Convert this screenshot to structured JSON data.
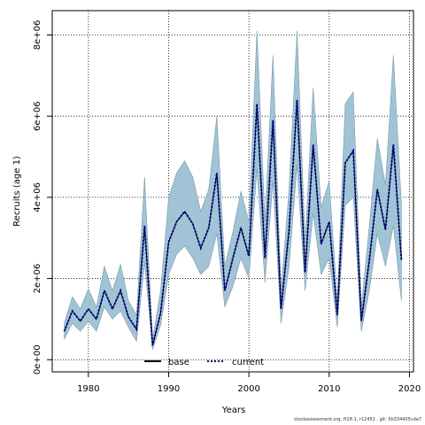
{
  "chart_data": {
    "type": "area",
    "xlabel": "Years",
    "ylabel": "Recruits (age 1)",
    "xlim": [
      1975.5,
      2020.5
    ],
    "ylim": [
      -300000,
      8600000
    ],
    "x_ticks": [
      1980,
      1990,
      2000,
      2010,
      2020
    ],
    "x_tick_labels": [
      "1980",
      "1990",
      "2000",
      "2010",
      "2020"
    ],
    "y_ticks": [
      0,
      2000000,
      4000000,
      6000000,
      8000000
    ],
    "y_tick_labels": [
      "0e+00",
      "2e+06",
      "4e+06",
      "6e+06",
      "8e+06"
    ],
    "grid": true,
    "legend_position": "bottom-center",
    "legend": [
      {
        "label": "base",
        "style": "solid",
        "color": "#000000"
      },
      {
        "label": "current",
        "style": "dotted",
        "color": "#00008b"
      }
    ],
    "band_color": "#a0c4d6",
    "x": [
      1977,
      1978,
      1979,
      1980,
      1981,
      1982,
      1983,
      1984,
      1985,
      1986,
      1987,
      1988,
      1989,
      1990,
      1991,
      1992,
      1993,
      1994,
      1995,
      1996,
      1997,
      1998,
      1999,
      2000,
      2001,
      2002,
      2003,
      2004,
      2005,
      2006,
      2007,
      2008,
      2009,
      2010,
      2011,
      2012,
      2013,
      2014,
      2015,
      2016,
      2017,
      2018,
      2019
    ],
    "series": [
      {
        "name": "base",
        "values": [
          700000,
          1200000,
          950000,
          1250000,
          1000000,
          1700000,
          1250000,
          1700000,
          1050000,
          750000,
          3300000,
          350000,
          1150000,
          2900000,
          3400000,
          3650000,
          3350000,
          2750000,
          3250000,
          4600000,
          1700000,
          2500000,
          3250000,
          2550000,
          6300000,
          2500000,
          5900000,
          1250000,
          3200000,
          6400000,
          2150000,
          5300000,
          2850000,
          3400000,
          1100000,
          4850000,
          5150000,
          950000,
          2450000,
          4200000,
          3200000,
          5300000,
          2450000
        ]
      },
      {
        "name": "current",
        "values": [
          700000,
          1200000,
          950000,
          1250000,
          1000000,
          1700000,
          1250000,
          1700000,
          1050000,
          750000,
          3300000,
          350000,
          1150000,
          2900000,
          3400000,
          3650000,
          3350000,
          2750000,
          3250000,
          4600000,
          1700000,
          2500000,
          3250000,
          2550000,
          6300000,
          2500000,
          5900000,
          1250000,
          3200000,
          6400000,
          2150000,
          5300000,
          2850000,
          3400000,
          1100000,
          4850000,
          5150000,
          950000,
          2450000,
          4200000,
          3200000,
          5300000,
          2450000
        ]
      }
    ],
    "band": {
      "lower": [
        500000,
        900000,
        700000,
        950000,
        700000,
        1300000,
        1000000,
        1200000,
        800000,
        450000,
        2400000,
        250000,
        850000,
        2100000,
        2600000,
        2800000,
        2500000,
        2100000,
        2300000,
        3100000,
        1300000,
        1800000,
        2500000,
        2000000,
        4700000,
        1900000,
        4400000,
        900000,
        2300000,
        4800000,
        1700000,
        3600000,
        2100000,
        2500000,
        800000,
        3800000,
        4000000,
        700000,
        1700000,
        3100000,
        2300000,
        3300000,
        1450000
      ],
      "upper": [
        900000,
        1550000,
        1250000,
        1750000,
        1300000,
        2300000,
        1700000,
        2350000,
        1450000,
        1100000,
        4500000,
        500000,
        1700000,
        4000000,
        4600000,
        4900000,
        4500000,
        3650000,
        4200000,
        6000000,
        2300000,
        3150000,
        4150000,
        3400000,
        8100000,
        3400000,
        7500000,
        1700000,
        4200000,
        8100000,
        2900000,
        6700000,
        3750000,
        4400000,
        1450000,
        6300000,
        6600000,
        1300000,
        3300000,
        5450000,
        4300000,
        7500000,
        3800000
      ]
    }
  },
  "footer": "stockassessment.org, H28.1, r12451 , git: 5b334405cda7"
}
